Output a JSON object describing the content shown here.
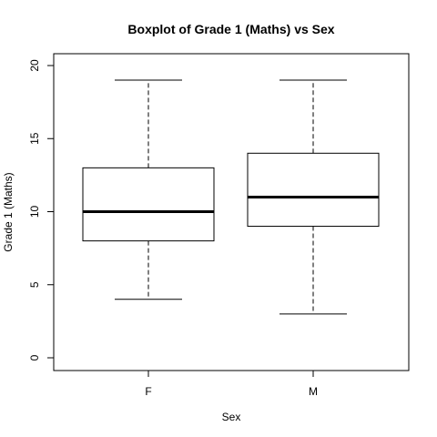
{
  "chart_data": {
    "type": "boxplot",
    "title": "Boxplot of Grade 1 (Maths)  vs  Sex",
    "xlabel": "Sex",
    "ylabel": "Grade 1 (Maths)",
    "ylim": [
      0,
      20
    ],
    "yticks": [
      "0",
      "5",
      "10",
      "15",
      "20"
    ],
    "categories": [
      "F",
      "M"
    ],
    "boxes": [
      {
        "category": "F",
        "whisker_low": 4,
        "q1": 8,
        "median": 10,
        "q3": 13,
        "whisker_high": 19
      },
      {
        "category": "M",
        "whisker_low": 3,
        "q1": 9,
        "median": 11,
        "q3": 14,
        "whisker_high": 19
      }
    ],
    "grid": false,
    "legend": "none"
  }
}
